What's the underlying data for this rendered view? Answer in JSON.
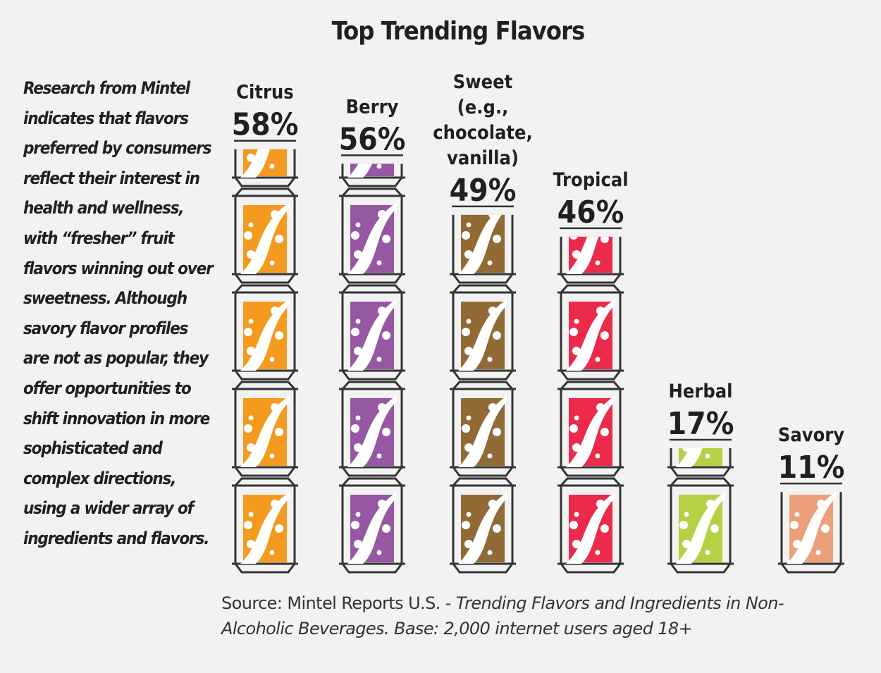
{
  "title": "Top Trending Flavors",
  "intro": "Research from Mintel indicates that flavors preferred by consumers reflect their interest in health and wellness, with “fresher” fruit flavors winning out over sweetness. Although savory flavor profiles are not as popular, they offer opportunities to shift innovation in more sophisticated and complex directions, using a wider array of ingredients and flavors.",
  "source": {
    "prefix": "Source: Mintel Reports U.S. - ",
    "italic": "Trending Flavors and Ingredients in Non-Alcoholic Beverages. Base: 2,000 internet users aged 18+"
  },
  "chart_data": {
    "type": "bar",
    "style": "pictograph of stacked beverage cans",
    "title": "Top Trending Flavors",
    "unit": "%",
    "categories": [
      "Citrus",
      "Berry",
      "Sweet (e.g., chocolate, vanilla)",
      "Tropical",
      "Herbal",
      "Savory"
    ],
    "label_lines": [
      [
        "Citrus"
      ],
      [
        "Berry"
      ],
      [
        "Sweet",
        "(e.g.,",
        "chocolate,",
        "vanilla)"
      ],
      [
        "Tropical"
      ],
      [
        "Herbal"
      ],
      [
        "Savory"
      ]
    ],
    "values": [
      58,
      56,
      49,
      46,
      17,
      11
    ],
    "value_labels": [
      "58%",
      "56%",
      "49%",
      "46%",
      "17%",
      "11%"
    ],
    "colors": [
      "#f39a1f",
      "#9657a3",
      "#916a35",
      "#ec2a4b",
      "#b6d043",
      "#eba07a"
    ],
    "grid": false,
    "legend": "none"
  }
}
